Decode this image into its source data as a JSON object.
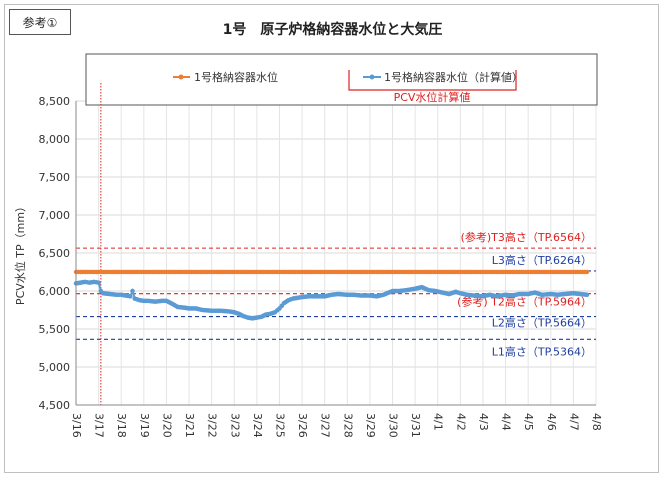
{
  "ref_label": "参考①",
  "chart_data": {
    "type": "line",
    "title": "1号　原子炉格納容器水位と大気圧",
    "ylabel": "PCV水位 TP（mm）",
    "xlabel": "",
    "ylim": [
      4500,
      8500
    ],
    "yticks": [
      "4,500",
      "5,000",
      "5,500",
      "6,000",
      "6,500",
      "7,000",
      "7,500",
      "8,000",
      "8,500"
    ],
    "xticks": [
      "3/16",
      "3/17",
      "3/18",
      "3/19",
      "3/20",
      "3/21",
      "3/22",
      "3/23",
      "3/24",
      "3/25",
      "3/26",
      "3/27",
      "3/28",
      "3/29",
      "3/30",
      "3/31",
      "4/1",
      "4/2",
      "4/3",
      "4/4",
      "4/5",
      "4/6",
      "4/7",
      "4/8"
    ],
    "grid": true,
    "legend_position": "top",
    "legend_box_label": "PCV水位計算値",
    "colors": {
      "measured": "#ed7d31",
      "calculated": "#5b9bd5",
      "ref_red": "#e02020",
      "ref_blue": "#1f3fa0"
    },
    "series": [
      {
        "name": "1号格納容器水位",
        "x_start": 0,
        "x_end": 22.6,
        "values_const": 6250
      },
      {
        "name": "1号格納容器水位（計算値）",
        "x": [
          0,
          0.2,
          0.4,
          0.6,
          0.8,
          1,
          1.1,
          1.2,
          1.5,
          1.8,
          2,
          2.2,
          2.4,
          2.5,
          2.6,
          2.8,
          3,
          3.2,
          3.5,
          3.8,
          4,
          4.2,
          4.5,
          4.8,
          5,
          5.3,
          5.6,
          6,
          6.4,
          6.8,
          7,
          7.2,
          7.4,
          7.6,
          7.8,
          8,
          8.2,
          8.4,
          8.6,
          8.8,
          9,
          9.2,
          9.4,
          9.6,
          9.8,
          10,
          10.3,
          10.6,
          11,
          11.3,
          11.6,
          12,
          12.3,
          12.6,
          13,
          13.3,
          13.6,
          14,
          14.3,
          14.6,
          15,
          15.3,
          15.6,
          15.9,
          16.2,
          16.5,
          16.8,
          17,
          17.3,
          17.6,
          18,
          18.3,
          18.6,
          19,
          19.3,
          19.6,
          20,
          20.3,
          20.6,
          21,
          21.3,
          21.6,
          22,
          22.3,
          22.6
        ],
        "values": [
          6100,
          6110,
          6120,
          6110,
          6120,
          6110,
          6000,
          5970,
          5960,
          5950,
          5950,
          5940,
          5930,
          6000,
          5900,
          5880,
          5870,
          5870,
          5860,
          5870,
          5870,
          5840,
          5790,
          5780,
          5770,
          5770,
          5750,
          5740,
          5740,
          5730,
          5720,
          5700,
          5670,
          5650,
          5640,
          5650,
          5660,
          5690,
          5700,
          5720,
          5770,
          5840,
          5880,
          5900,
          5910,
          5920,
          5930,
          5930,
          5930,
          5950,
          5960,
          5950,
          5950,
          5940,
          5940,
          5930,
          5950,
          6000,
          6000,
          6010,
          6030,
          6050,
          6010,
          6000,
          5980,
          5960,
          5990,
          5970,
          5950,
          5940,
          5930,
          5950,
          5930,
          5950,
          5940,
          5960,
          5960,
          5980,
          5950,
          5960,
          5950,
          5960,
          5970,
          5960,
          5950
        ]
      }
    ],
    "reference_lines": [
      {
        "label": "(参考)T3高さ（TP.6564）",
        "value": 6564,
        "color": "red"
      },
      {
        "label": "L3高さ（TP.6264）",
        "value": 6264,
        "color": "blue"
      },
      {
        "label": "(参考) T2高さ（TP.5964）",
        "value": 5964,
        "color": "red"
      },
      {
        "label": "L2高さ（TP.5664）",
        "value": 5664,
        "color": "blue"
      },
      {
        "label": "L1高さ（TP.5364）",
        "value": 5364,
        "color": "blue"
      }
    ],
    "vertical_line_x": 1.1
  }
}
